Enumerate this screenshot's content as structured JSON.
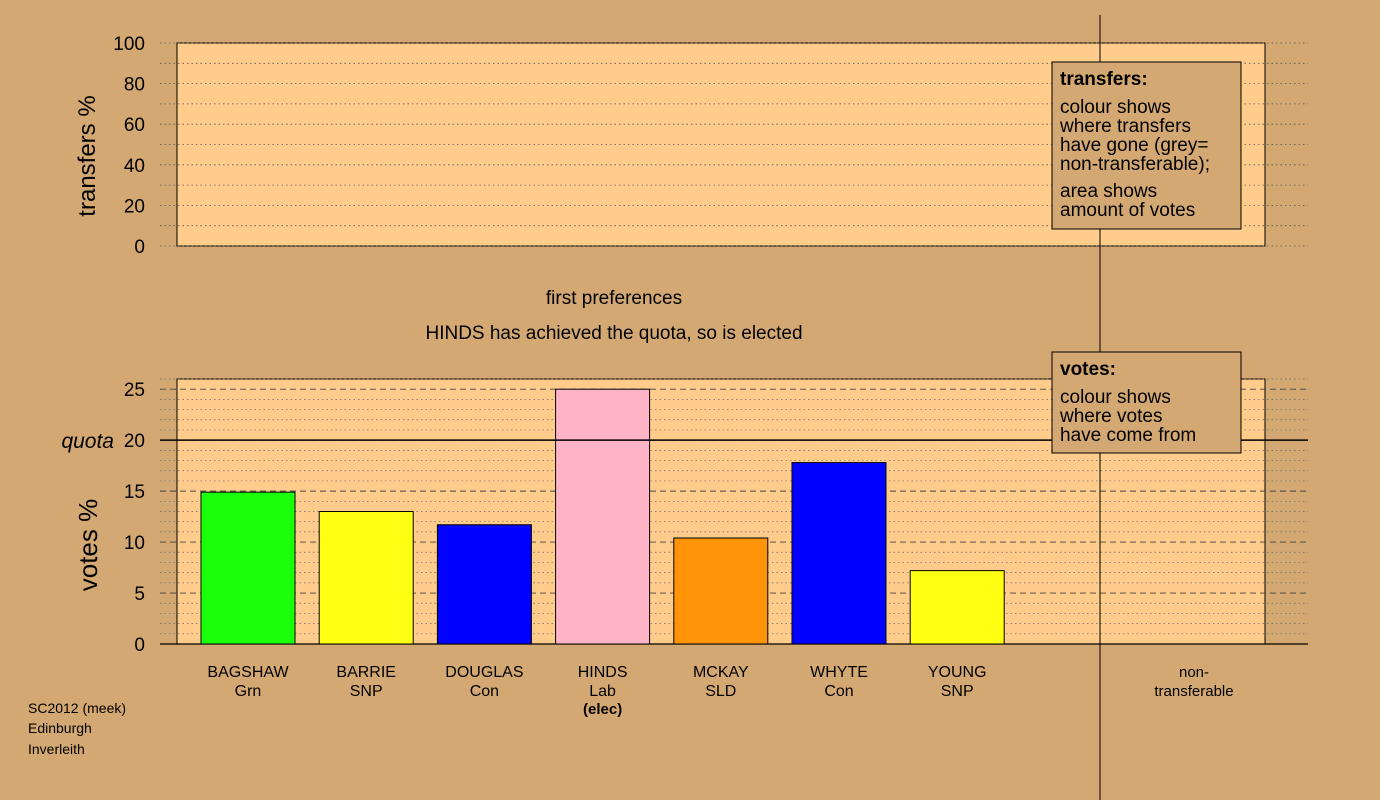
{
  "colors": {
    "background": "#d4a872",
    "panel": "#ffcc8c",
    "legend_box": "#d4a872",
    "green": "#1aff0a",
    "yellow": "#ffff14",
    "blue": "#0000ff",
    "pink": "#ffb3c6",
    "orange": "#ff9409"
  },
  "chart_data": [
    {
      "type": "bar",
      "ylabel": "transfers %",
      "ylim": [
        0,
        100
      ],
      "yticks": [
        "0",
        "20",
        "40",
        "60",
        "80",
        "100"
      ],
      "grid": "dotted",
      "values": [],
      "legend": {
        "title": "transfers:",
        "lines1": [
          "colour shows",
          "where transfers",
          "have gone (grey=",
          "non-transferable);"
        ],
        "lines2": [
          "area shows",
          "amount of votes"
        ]
      }
    },
    {
      "type": "bar",
      "ylabel": "votes %",
      "ylim": [
        0,
        26
      ],
      "yticks": [
        "0",
        "5",
        "10",
        "15",
        "20",
        "25"
      ],
      "grid": "dotted",
      "quota": {
        "label": "quota",
        "value": 20
      },
      "categories": [
        {
          "name": "BAGSHAW",
          "party": "Grn",
          "value": 14.9,
          "color": "#1aff0a",
          "note": ""
        },
        {
          "name": "BARRIE",
          "party": "SNP",
          "value": 13.0,
          "color": "#ffff14",
          "note": ""
        },
        {
          "name": "DOUGLAS",
          "party": "Con",
          "value": 11.7,
          "color": "#0000ff",
          "note": ""
        },
        {
          "name": "HINDS",
          "party": "Lab",
          "value": 25.0,
          "color": "#ffb3c6",
          "note": "(elec)"
        },
        {
          "name": "MCKAY",
          "party": "SLD",
          "value": 10.4,
          "color": "#ff9409",
          "note": ""
        },
        {
          "name": "WHYTE",
          "party": "Con",
          "value": 17.8,
          "color": "#0000ff",
          "note": ""
        },
        {
          "name": "YOUNG",
          "party": "SNP",
          "value": 7.2,
          "color": "#ffff14",
          "note": ""
        }
      ],
      "nontransferable": {
        "line1": "non-",
        "line2": "transferable"
      },
      "legend": {
        "title": "votes:",
        "lines": [
          "colour shows",
          "where votes",
          "have come from"
        ]
      }
    }
  ],
  "headings": {
    "stage": "first preferences",
    "status": "HINDS has achieved the quota, so is elected"
  },
  "footer": [
    "SC2012 (meek)",
    "Edinburgh",
    "Inverleith"
  ]
}
